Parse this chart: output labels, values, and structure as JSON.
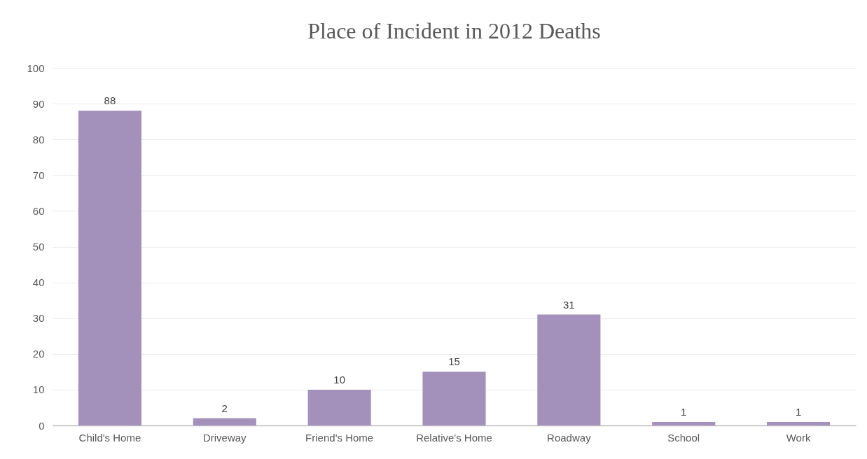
{
  "chart_data": {
    "type": "bar",
    "title": "Place of Incident in 2012 Deaths",
    "categories": [
      "Child's Home",
      "Driveway",
      "Friend's Home",
      "Relative's Home",
      "Roadway",
      "School",
      "Work"
    ],
    "values": [
      88,
      2,
      10,
      15,
      31,
      1,
      1
    ],
    "color": "#a390bb",
    "ylim": [
      0,
      100
    ],
    "yticks": [
      0,
      10,
      20,
      30,
      40,
      50,
      60,
      70,
      80,
      90,
      100
    ],
    "grid": "y",
    "data_labels": true
  }
}
